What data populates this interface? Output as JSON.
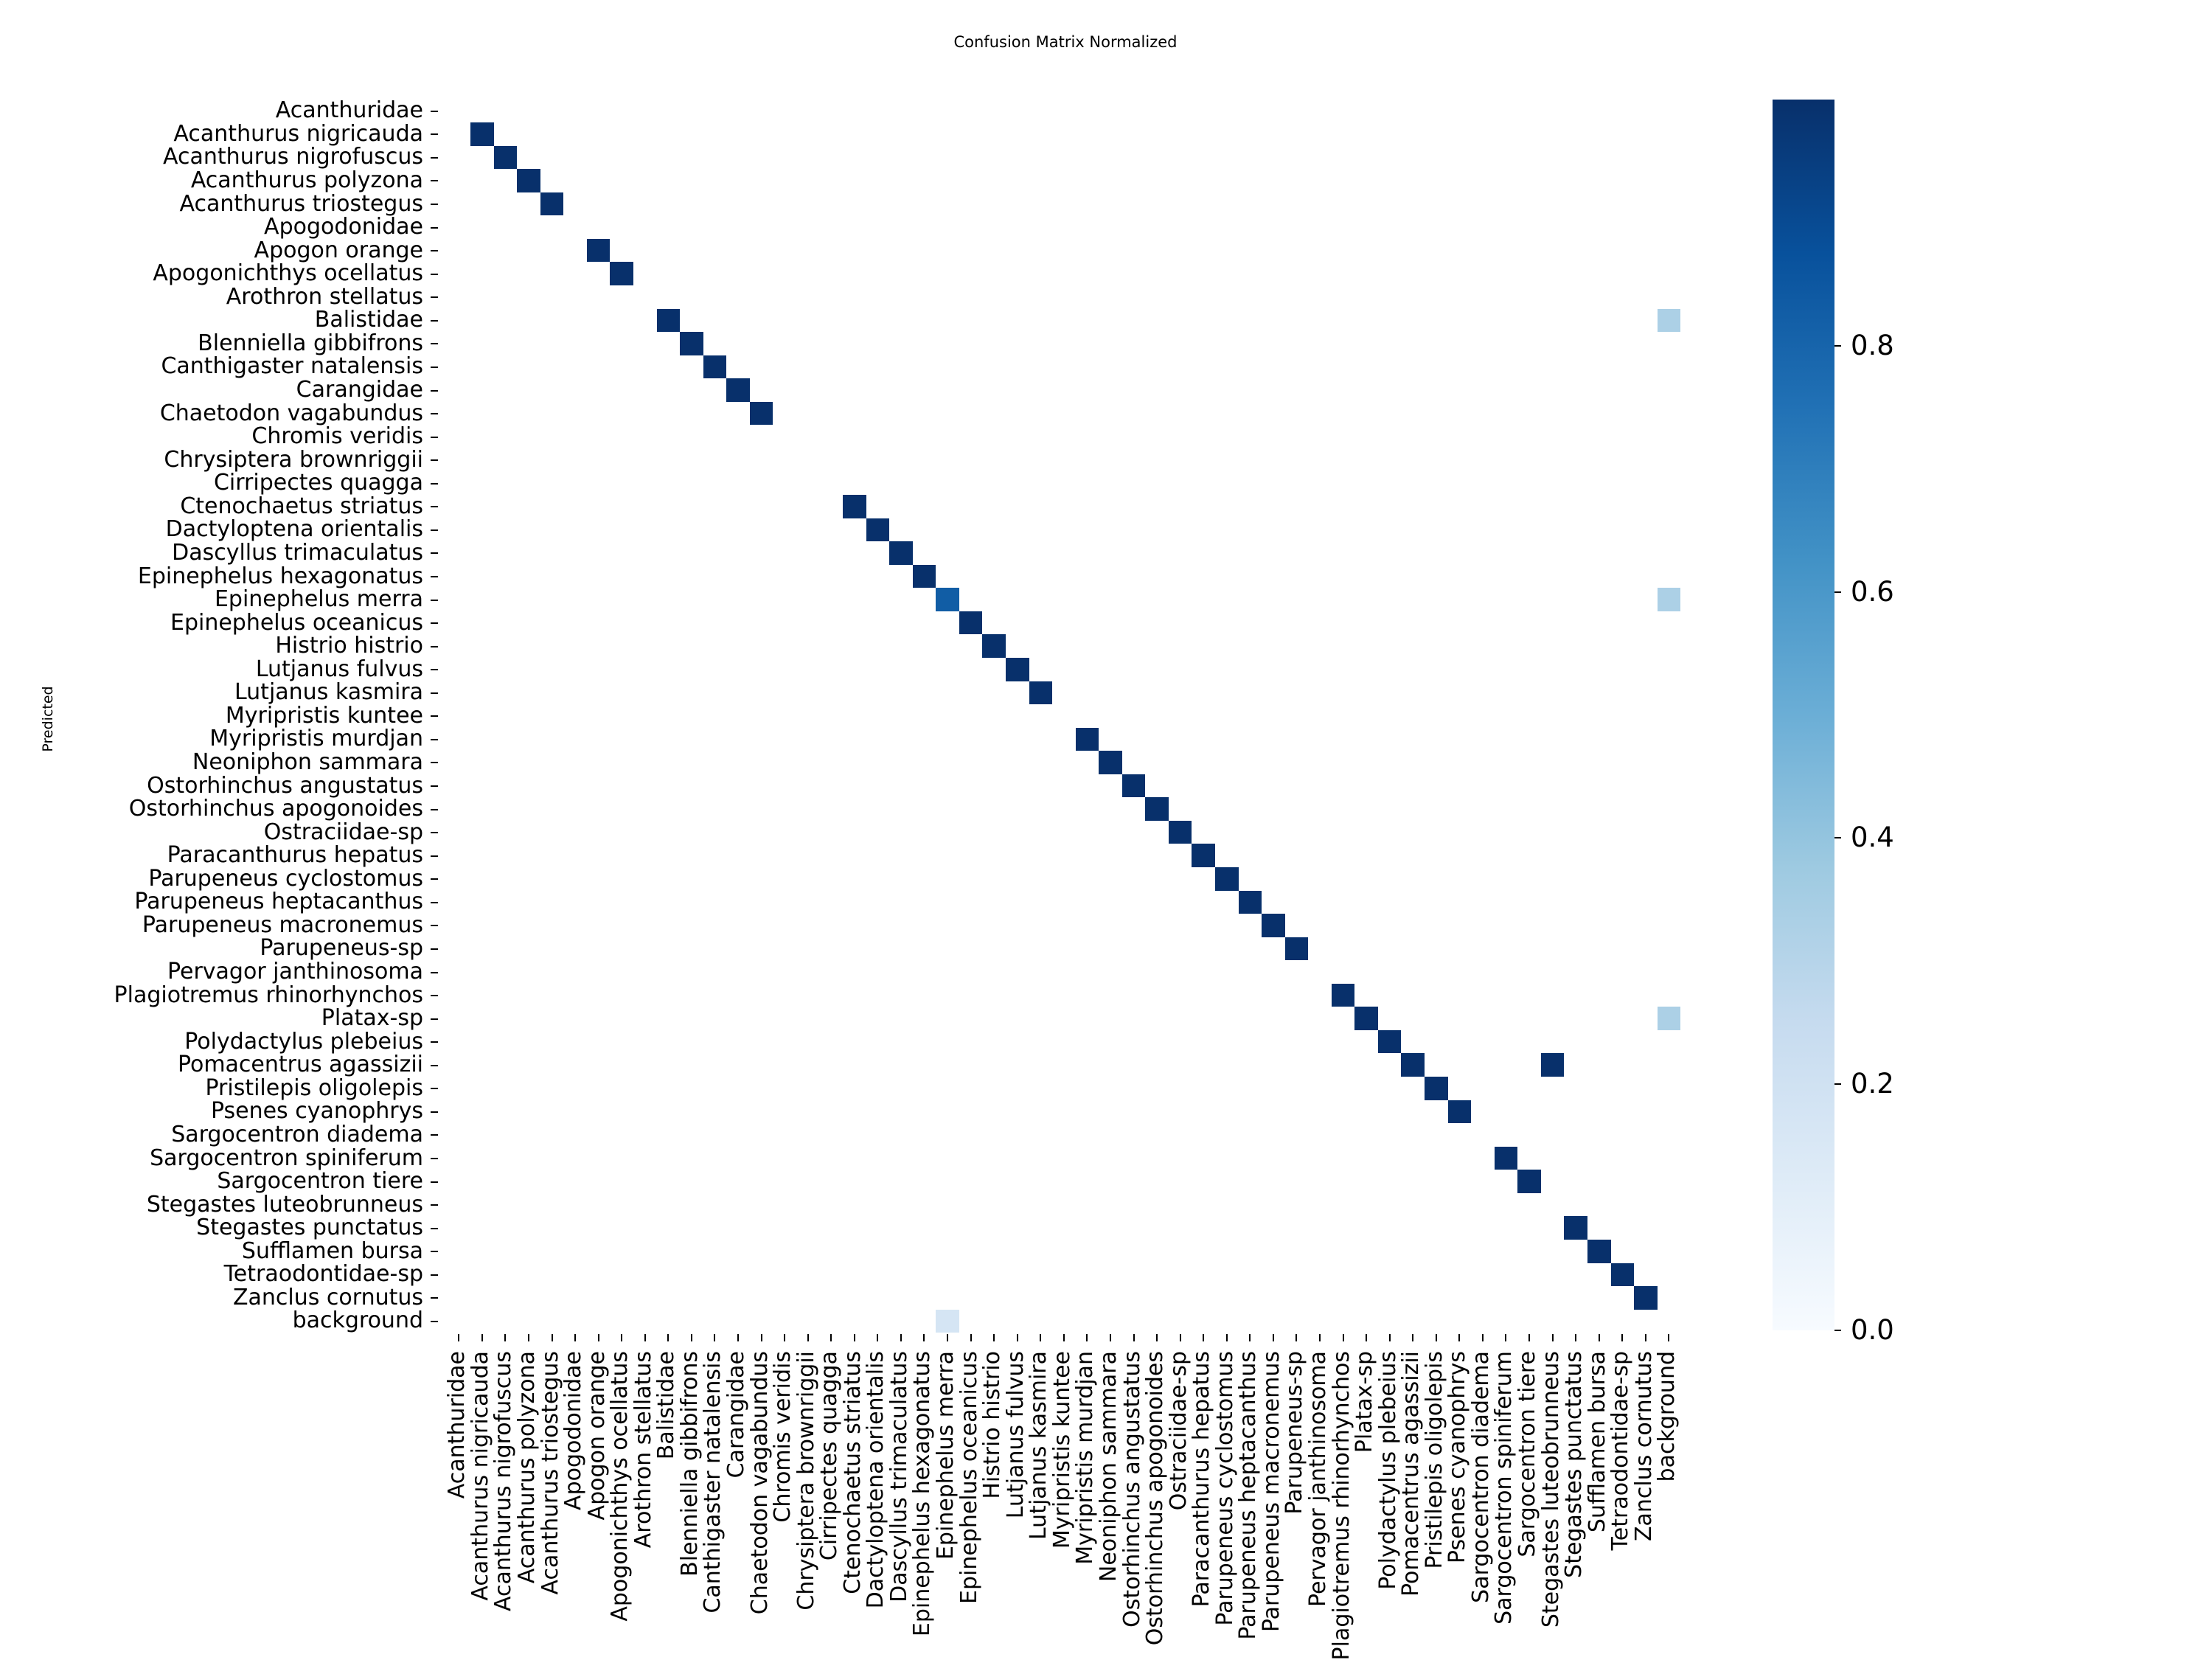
{
  "chart_data": {
    "type": "heatmap",
    "title": "Confusion Matrix Normalized",
    "xlabel": "",
    "ylabel": "Predicted",
    "colormap": "Blues",
    "vmin": 0.0,
    "vmax": 1.0,
    "colorbar_ticks": [
      "0.0",
      "0.2",
      "0.4",
      "0.6",
      "0.8"
    ],
    "colorbar_tick_values": [
      0.0,
      0.2,
      0.4,
      0.6,
      0.8
    ],
    "labels": [
      "Acanthuridae",
      "Acanthurus nigricauda",
      "Acanthurus nigrofuscus",
      "Acanthurus polyzona",
      "Acanthurus triostegus",
      "Apogodonidae",
      "Apogon orange",
      "Apogonichthys ocellatus",
      "Arothron stellatus",
      "Balistidae",
      "Blenniella gibbifrons",
      "Canthigaster natalensis",
      "Carangidae",
      "Chaetodon vagabundus",
      "Chromis veridis",
      "Chrysiptera brownriggii",
      "Cirripectes quagga",
      "Ctenochaetus striatus",
      "Dactyloptena orientalis",
      "Dascyllus trimaculatus",
      "Epinephelus hexagonatus",
      "Epinephelus merra",
      "Epinephelus oceanicus",
      "Histrio histrio",
      "Lutjanus fulvus",
      "Lutjanus kasmira",
      "Myripristis kuntee",
      "Myripristis murdjan",
      "Neoniphon sammara",
      "Ostorhinchus angustatus",
      "Ostorhinchus apogonoides",
      "Ostraciidae-sp",
      "Paracanthurus hepatus",
      "Parupeneus cyclostomus",
      "Parupeneus heptacanthus",
      "Parupeneus macronemus",
      "Parupeneus-sp",
      "Pervagor janthinosoma",
      "Plagiotremus rhinorhynchos",
      "Platax-sp",
      "Polydactylus plebeius",
      "Pomacentrus agassizii",
      "Pristilepis oligolepis",
      "Psenes cyanophrys",
      "Sargocentron diadema",
      "Sargocentron spiniferum",
      "Sargocentron tiere",
      "Stegastes luteobrunneus",
      "Stegastes punctatus",
      "Sufflamen bursa",
      "Tetraodontidae-sp",
      "Zanclus cornutus",
      "background"
    ],
    "nonzero_cells": [
      {
        "row": 1,
        "col": 1,
        "value": 1.0
      },
      {
        "row": 2,
        "col": 2,
        "value": 1.0
      },
      {
        "row": 3,
        "col": 3,
        "value": 1.0
      },
      {
        "row": 4,
        "col": 4,
        "value": 1.0
      },
      {
        "row": 6,
        "col": 6,
        "value": 1.0
      },
      {
        "row": 7,
        "col": 7,
        "value": 1.0
      },
      {
        "row": 9,
        "col": 9,
        "value": 1.0
      },
      {
        "row": 9,
        "col": 52,
        "value": 0.33
      },
      {
        "row": 10,
        "col": 10,
        "value": 1.0
      },
      {
        "row": 11,
        "col": 11,
        "value": 1.0
      },
      {
        "row": 12,
        "col": 12,
        "value": 1.0
      },
      {
        "row": 13,
        "col": 13,
        "value": 1.0
      },
      {
        "row": 17,
        "col": 17,
        "value": 1.0
      },
      {
        "row": 18,
        "col": 18,
        "value": 1.0
      },
      {
        "row": 19,
        "col": 19,
        "value": 1.0
      },
      {
        "row": 20,
        "col": 20,
        "value": 1.0
      },
      {
        "row": 21,
        "col": 21,
        "value": 0.83
      },
      {
        "row": 21,
        "col": 52,
        "value": 0.33
      },
      {
        "row": 22,
        "col": 22,
        "value": 1.0
      },
      {
        "row": 23,
        "col": 23,
        "value": 1.0
      },
      {
        "row": 24,
        "col": 24,
        "value": 1.0
      },
      {
        "row": 25,
        "col": 25,
        "value": 1.0
      },
      {
        "row": 27,
        "col": 27,
        "value": 1.0
      },
      {
        "row": 28,
        "col": 28,
        "value": 1.0
      },
      {
        "row": 29,
        "col": 29,
        "value": 1.0
      },
      {
        "row": 30,
        "col": 30,
        "value": 1.0
      },
      {
        "row": 31,
        "col": 31,
        "value": 1.0
      },
      {
        "row": 32,
        "col": 32,
        "value": 1.0
      },
      {
        "row": 33,
        "col": 33,
        "value": 1.0
      },
      {
        "row": 34,
        "col": 34,
        "value": 1.0
      },
      {
        "row": 35,
        "col": 35,
        "value": 1.0
      },
      {
        "row": 36,
        "col": 36,
        "value": 1.0
      },
      {
        "row": 38,
        "col": 38,
        "value": 1.0
      },
      {
        "row": 39,
        "col": 39,
        "value": 1.0
      },
      {
        "row": 39,
        "col": 52,
        "value": 0.33
      },
      {
        "row": 40,
        "col": 40,
        "value": 1.0
      },
      {
        "row": 41,
        "col": 41,
        "value": 1.0
      },
      {
        "row": 41,
        "col": 47,
        "value": 1.0
      },
      {
        "row": 42,
        "col": 42,
        "value": 1.0
      },
      {
        "row": 43,
        "col": 43,
        "value": 1.0
      },
      {
        "row": 45,
        "col": 45,
        "value": 1.0
      },
      {
        "row": 46,
        "col": 46,
        "value": 1.0
      },
      {
        "row": 48,
        "col": 48,
        "value": 1.0
      },
      {
        "row": 49,
        "col": 49,
        "value": 1.0
      },
      {
        "row": 50,
        "col": 50,
        "value": 1.0
      },
      {
        "row": 51,
        "col": 51,
        "value": 1.0
      },
      {
        "row": 52,
        "col": 21,
        "value": 0.17
      }
    ]
  }
}
